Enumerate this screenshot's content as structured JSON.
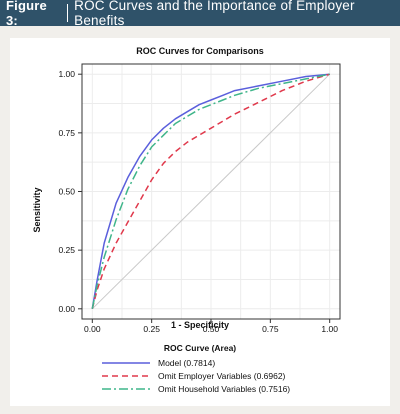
{
  "figure": {
    "label": "Figure 3:",
    "title": "ROC Curves and the Importance of Employer Benefits"
  },
  "colors": {
    "banner": "#2f5269",
    "model": "#5a5fdc",
    "employer": "#e0384b",
    "household": "#3fb58a",
    "diagonal": "#c9c9c9"
  },
  "chart_data": {
    "type": "line",
    "title": "ROC Curves for Comparisons",
    "xlabel": "1 - Specificity",
    "ylabel": "Sensitivity",
    "xlim": [
      0,
      1
    ],
    "ylim": [
      0,
      1
    ],
    "xticks": [
      "0.00",
      "0.25",
      "0.50",
      "0.75",
      "1.00"
    ],
    "yticks": [
      "0.00",
      "0.25",
      "0.50",
      "0.75",
      "1.00"
    ],
    "grid": true,
    "legend_title": "ROC Curve (Area)",
    "legend_position": "bottom",
    "reference_line": "diagonal",
    "series": [
      {
        "name": "Model (0.7814)",
        "style": "solid",
        "color": "#5a5fdc",
        "x": [
          0,
          0.02,
          0.05,
          0.1,
          0.15,
          0.2,
          0.25,
          0.3,
          0.35,
          0.4,
          0.45,
          0.5,
          0.55,
          0.6,
          0.7,
          0.8,
          0.9,
          1.0
        ],
        "y": [
          0,
          0.12,
          0.28,
          0.45,
          0.56,
          0.65,
          0.72,
          0.77,
          0.81,
          0.84,
          0.87,
          0.89,
          0.91,
          0.93,
          0.95,
          0.97,
          0.99,
          1.0
        ]
      },
      {
        "name": "Omit Employer Variables (0.6962)",
        "style": "dashed",
        "color": "#e0384b",
        "x": [
          0,
          0.02,
          0.05,
          0.1,
          0.15,
          0.2,
          0.25,
          0.3,
          0.35,
          0.4,
          0.45,
          0.5,
          0.55,
          0.6,
          0.7,
          0.8,
          0.9,
          1.0
        ],
        "y": [
          0,
          0.08,
          0.17,
          0.28,
          0.37,
          0.46,
          0.55,
          0.62,
          0.67,
          0.71,
          0.74,
          0.77,
          0.8,
          0.83,
          0.88,
          0.93,
          0.97,
          1.0
        ]
      },
      {
        "name": "Omit Household Variables (0.7516)",
        "style": "dashdot",
        "color": "#3fb58a",
        "x": [
          0,
          0.02,
          0.05,
          0.1,
          0.15,
          0.2,
          0.25,
          0.3,
          0.35,
          0.4,
          0.45,
          0.5,
          0.55,
          0.6,
          0.7,
          0.8,
          0.9,
          1.0
        ],
        "y": [
          0,
          0.1,
          0.22,
          0.38,
          0.51,
          0.61,
          0.69,
          0.74,
          0.79,
          0.82,
          0.85,
          0.87,
          0.89,
          0.91,
          0.94,
          0.96,
          0.98,
          1.0
        ]
      }
    ]
  }
}
